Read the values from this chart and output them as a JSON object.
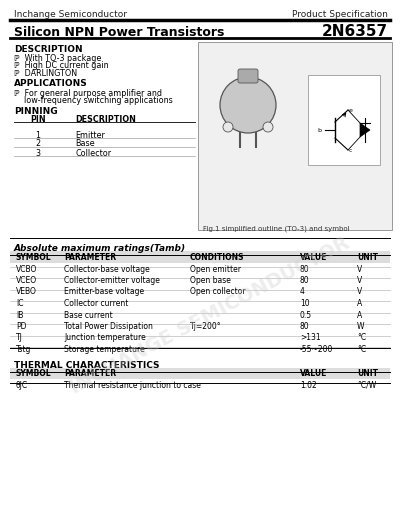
{
  "company": "Inchange Semiconductor",
  "spec_type": "Product Specification",
  "title": "Silicon NPN Power Transistors",
  "part_number": "2N6357",
  "bg_color": "#ffffff",
  "description_title": "DESCRIPTION",
  "description_items": [
    "ℙ  With TO-3 package",
    "ℙ  High DC current gain",
    "ℙ  DARLINGTON"
  ],
  "applications_title": "APPLICATIONS",
  "applications_items": [
    "ℙ  For general purpose amplifier and",
    "    low-frequency switching applications"
  ],
  "pinning_title": "PINNING",
  "pin_headers": [
    "PIN",
    "DESCRIPTION"
  ],
  "pins": [
    [
      "1",
      "Emitter"
    ],
    [
      "2",
      "Base"
    ],
    [
      "3",
      "Collector"
    ]
  ],
  "fig_caption": "Fig.1 simplified outline (TO-3) and symbol",
  "abs_max_title": "Absolute maximum ratings(Tamb)",
  "abs_max_headers": [
    "SYMBOL",
    "PARAMETER",
    "CONDITIONS",
    "VALUE",
    "UNIT"
  ],
  "abs_max_rows": [
    [
      "VCBO",
      "Collector-base voltage",
      "Open emitter",
      "80",
      "V"
    ],
    [
      "VCEO",
      "Collector-emitter voltage",
      "Open base",
      "80",
      "V"
    ],
    [
      "VEBO",
      "Emitter-base voltage",
      "Open collector",
      "4",
      "V"
    ],
    [
      "IC",
      "Collector current",
      "",
      "10",
      "A"
    ],
    [
      "IB",
      "Base current",
      "",
      "0.5",
      "A"
    ],
    [
      "PD",
      "Total Power Dissipation",
      "Tj=200°",
      "80",
      "W"
    ],
    [
      "TJ",
      "Junction temperature",
      "",
      ">131",
      "°C"
    ],
    [
      "Tstg",
      "Storage temperature",
      "",
      "-55~200",
      "°C"
    ]
  ],
  "thermal_title": "THERMAL CHARACTERISTICS",
  "thermal_headers": [
    "SYMBOL",
    "PARAMETER",
    "VALUE",
    "UNIT"
  ],
  "thermal_rows": [
    [
      "θJC",
      "Thermal resistance junction to case",
      "1.02",
      "°C/W"
    ]
  ],
  "watermark": "INCHANGE SEMICONDUCTOR"
}
